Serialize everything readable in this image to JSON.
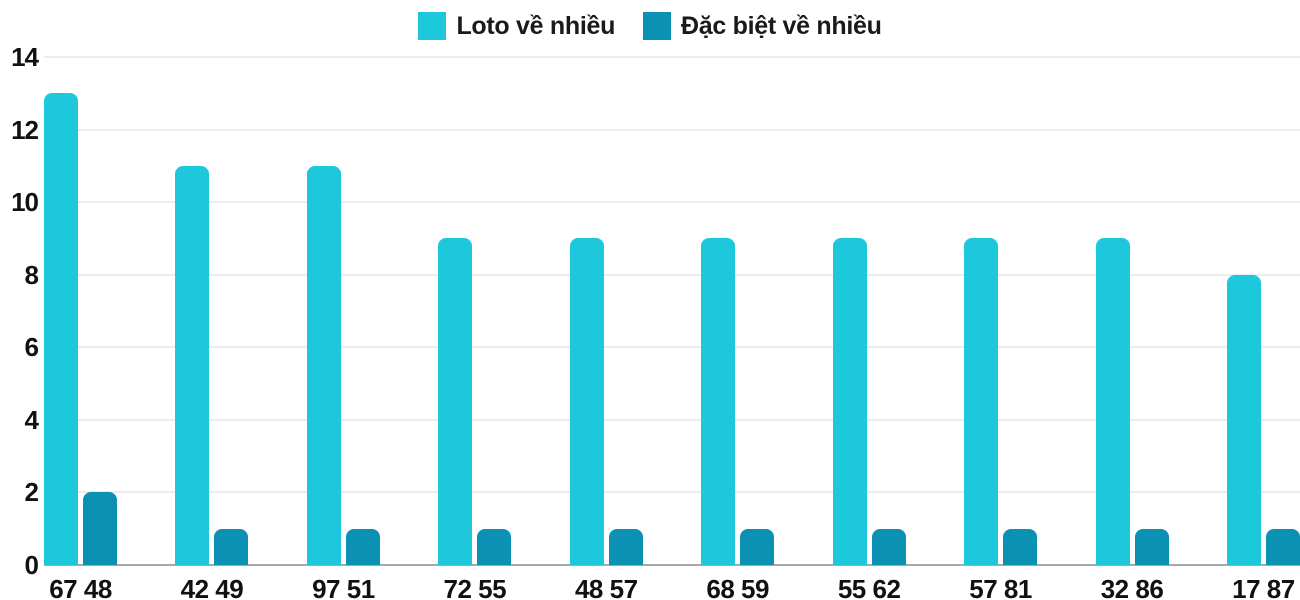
{
  "chart_data": {
    "type": "bar",
    "title": "",
    "categories": [
      "67 48",
      "42 49",
      "97 51",
      "72 55",
      "48 57",
      "68 59",
      "55 62",
      "57 81",
      "32 86",
      "17 87"
    ],
    "series": [
      {
        "name": "Loto về nhiều",
        "color": "#1dc8dc",
        "values": [
          13,
          11,
          11,
          9,
          9,
          9,
          9,
          9,
          9,
          8
        ]
      },
      {
        "name": "Đặc biệt về nhiều",
        "color": "#0a91b4",
        "values": [
          2,
          1,
          1,
          1,
          1,
          1,
          1,
          1,
          1,
          1
        ]
      }
    ],
    "xlabel": "",
    "ylabel": "",
    "ylim": [
      0,
      14
    ],
    "y_ticks": [
      0,
      2,
      4,
      6,
      8,
      10,
      12,
      14
    ],
    "grid": true,
    "legend_position": "top-center"
  },
  "colors": {
    "grid": "#ececec",
    "baseline": "#a8a8a8",
    "text": "#111111",
    "background": "#ffffff"
  }
}
